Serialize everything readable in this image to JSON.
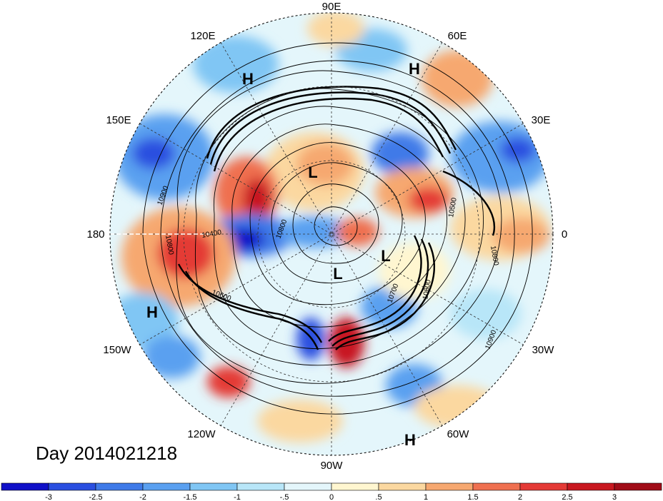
{
  "map": {
    "projection": "north polar stereographic",
    "longitude_labels": {
      "top": "90E",
      "upper_left": "120E",
      "upper_right": "60E",
      "mid_left_high": "150E",
      "mid_right_high": "30E",
      "left": "180",
      "right": "0",
      "mid_left_low": "150W",
      "mid_right_low": "30W",
      "lower_left": "120W",
      "lower_right": "60W",
      "bottom": "90W"
    },
    "pressure_centers": [
      "H",
      "H",
      "H",
      "H",
      "L",
      "L",
      "L"
    ],
    "contour_labels": [
      "10900",
      "10800",
      "10400",
      "10800",
      "10600",
      "10500",
      "10800",
      "10600",
      "10700",
      "10900"
    ],
    "date_label": "Day 2014021218"
  },
  "colorbar": {
    "tick_labels": [
      "-3",
      "-2.5",
      "-2",
      "-1.5",
      "-1",
      "-.5",
      "0",
      ".5",
      "1",
      "1.5",
      "2",
      "2.5",
      "3"
    ],
    "colors": [
      "#1010c8",
      "#2a4fe0",
      "#3f7ae8",
      "#5aa0f0",
      "#80c6f4",
      "#b8e6f8",
      "#e4f6fb",
      "#fff6d0",
      "#fbd8a0",
      "#f6a870",
      "#ef7050",
      "#e43a36",
      "#c81820",
      "#a00c18"
    ]
  }
}
